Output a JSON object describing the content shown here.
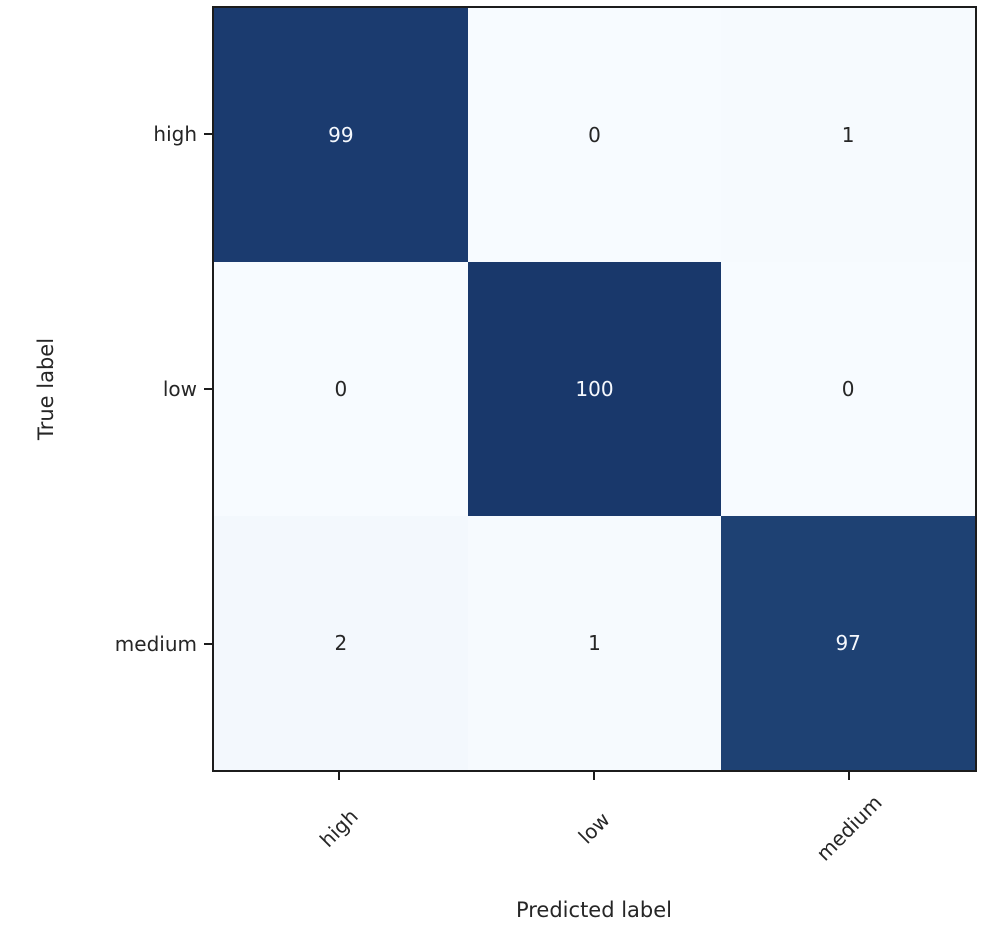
{
  "chart_data": {
    "type": "heatmap",
    "subtype": "confusion-matrix",
    "title": "",
    "xlabel": "Predicted label",
    "ylabel": "True label",
    "x_categories": [
      "high",
      "low",
      "medium"
    ],
    "y_categories": [
      "high",
      "low",
      "medium"
    ],
    "matrix": [
      [
        99,
        0,
        1
      ],
      [
        0,
        100,
        0
      ],
      [
        2,
        1,
        97
      ]
    ],
    "colormap": "Blues",
    "value_range": [
      0,
      100
    ],
    "grid": false,
    "legend": "none",
    "colors": {
      "cell_colors": [
        [
          "#1b3b6f",
          "#f7fbff",
          "#f6fafe"
        ],
        [
          "#f7fbff",
          "#19386b",
          "#f7fbff"
        ],
        [
          "#f3f8fd",
          "#f6fafe",
          "#1e4173"
        ]
      ],
      "text_colors": [
        [
          "#f5f8fd",
          "#262626",
          "#262626"
        ],
        [
          "#262626",
          "#f5f8fd",
          "#262626"
        ],
        [
          "#262626",
          "#262626",
          "#f5f8fd"
        ]
      ],
      "spine_color": "#1c1c1c",
      "label_color": "#262626",
      "background": "#ffffff"
    }
  }
}
